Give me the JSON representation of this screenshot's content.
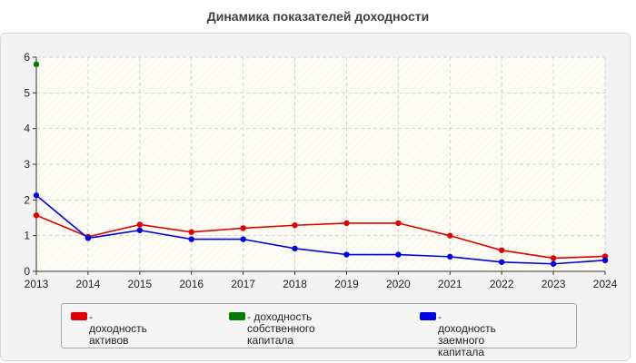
{
  "chart_data": {
    "type": "line",
    "title": "Динамика показателей доходности",
    "xlabel": "",
    "ylabel": "",
    "categories": [
      "2013",
      "2014",
      "2015",
      "2016",
      "2017",
      "2018",
      "2019",
      "2020",
      "2021",
      "2022",
      "2023",
      "2024"
    ],
    "y_ticks": [
      "0",
      "1",
      "2",
      "3",
      "4",
      "5",
      "6"
    ],
    "ylim": [
      0,
      6
    ],
    "grid": true,
    "legend_position": "bottom",
    "series": [
      {
        "name": "- доходность активов",
        "name_lines": [
          "- доходность активов"
        ],
        "color": "#e00000",
        "values": [
          1.57,
          0.97,
          1.31,
          1.1,
          1.21,
          1.29,
          1.35,
          1.35,
          1.0,
          0.59,
          0.37,
          0.42
        ]
      },
      {
        "name": "- доходность собственного капитала",
        "name_lines": [
          "- доходность собственного",
          "капитала"
        ],
        "color": "#007d00",
        "values": [
          5.8,
          null,
          null,
          null,
          null,
          null,
          null,
          null,
          null,
          null,
          null,
          null
        ]
      },
      {
        "name": "- доходность заемного капитала",
        "name_lines": [
          "- доходность заемного",
          "капитала"
        ],
        "color": "#0000e6",
        "values": [
          2.13,
          0.93,
          1.15,
          0.9,
          0.9,
          0.64,
          0.47,
          0.47,
          0.41,
          0.26,
          0.21,
          0.31
        ]
      }
    ]
  }
}
